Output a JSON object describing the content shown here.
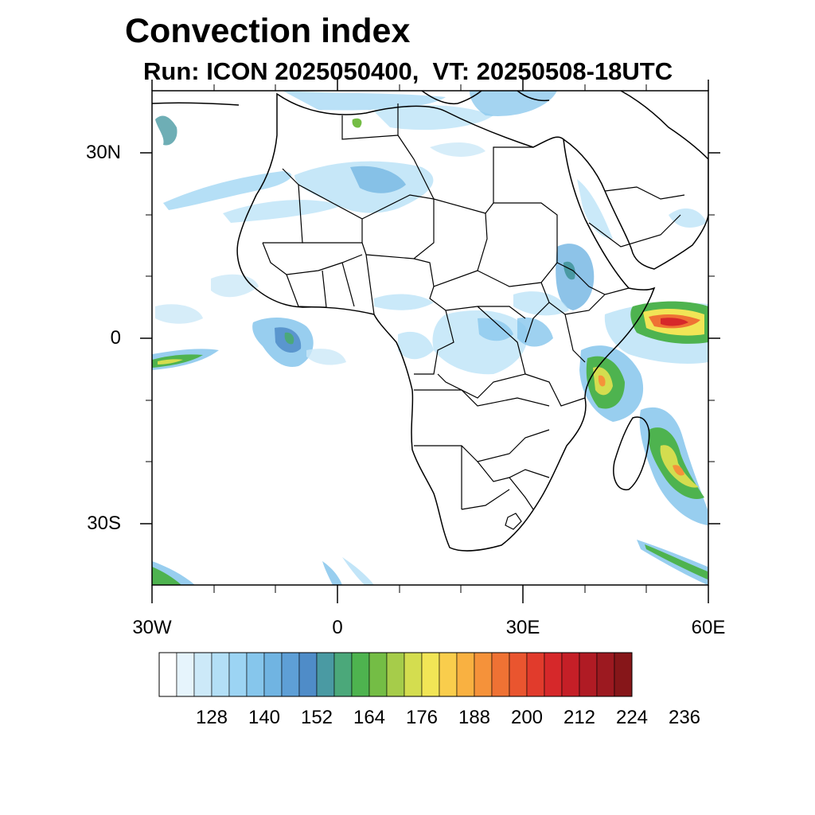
{
  "title": "Convection index",
  "subtitle": "Run: ICON 2025050400,  VT: 20250508-18UTC",
  "map": {
    "region": "Africa",
    "lon_range": [
      -30,
      60
    ],
    "lat_range": [
      -40,
      40
    ],
    "lat_tick_labels": [
      "30N",
      "0",
      "30S"
    ],
    "lon_tick_labels": [
      "30W",
      "0",
      "30E",
      "60E"
    ]
  },
  "colorbar": {
    "colors": [
      "#ffffff",
      "#e6f4fc",
      "#cce9f8",
      "#b3dff6",
      "#9cd4f3",
      "#86c6ec",
      "#70b4e2",
      "#5e9fd6",
      "#4f8cc8",
      "#4a9aa3",
      "#4ba87a",
      "#4eb34f",
      "#74bd45",
      "#a6cc4a",
      "#d4dd4f",
      "#f1e556",
      "#f9cd4c",
      "#f9b141",
      "#f5923a",
      "#ef7234",
      "#e9552f",
      "#e13b2c",
      "#d6282a",
      "#c51f27",
      "#b01b24",
      "#9c1920",
      "#861619"
    ],
    "tick_labels": [
      "128",
      "140",
      "152",
      "164",
      "176",
      "188",
      "200",
      "212",
      "224",
      "236"
    ]
  }
}
